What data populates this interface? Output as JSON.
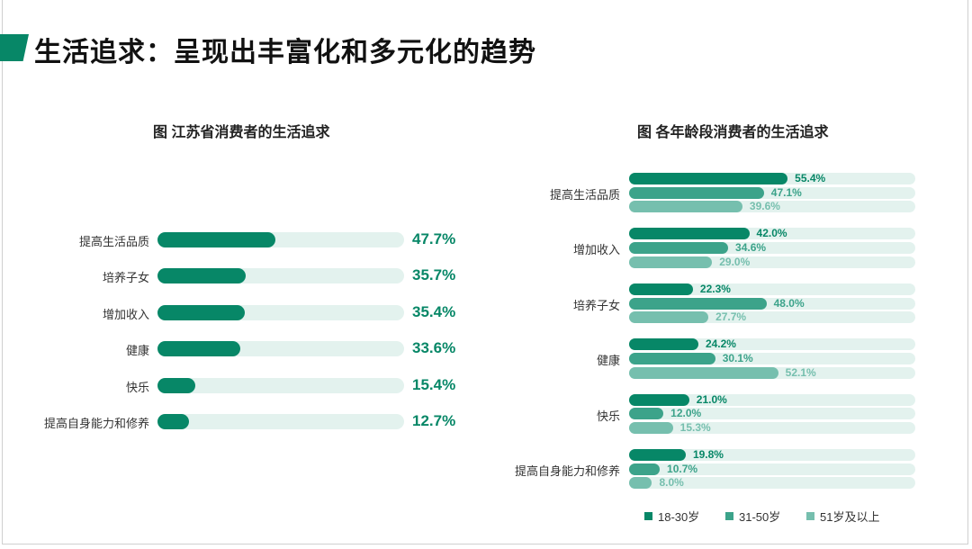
{
  "title": "生活追求：呈现出丰富化和多元化的趋势",
  "colors": {
    "dark": "#078767",
    "mid": "#3ca38a",
    "light": "#76bfae",
    "track": "#e3f2ee"
  },
  "chart_data": [
    {
      "type": "bar",
      "title": "图 江苏省消费者的生活追求",
      "categories": [
        "提高生活品质",
        "培养子女",
        "增加收入",
        "健康",
        "快乐",
        "提高自身能力和修养"
      ],
      "values": [
        47.7,
        35.7,
        35.4,
        33.6,
        15.4,
        12.7
      ],
      "labels": [
        "47.7%",
        "35.7%",
        "35.4%",
        "33.6%",
        "15.4%",
        "12.7%"
      ],
      "xlim": [
        0,
        100
      ]
    },
    {
      "type": "bar",
      "title": "图 各年龄段消费者的生活追求",
      "categories": [
        "提高生活品质",
        "增加收入",
        "培养子女",
        "健康",
        "快乐",
        "提高自身能力和修养"
      ],
      "xlim": [
        0,
        100
      ],
      "legend_position": "bottom",
      "series": [
        {
          "name": "18-30岁",
          "values": [
            55.4,
            42.0,
            22.3,
            24.2,
            21.0,
            19.8
          ],
          "labels": [
            "55.4%",
            "42.0%",
            "22.3%",
            "24.2%",
            "21.0%",
            "19.8%"
          ]
        },
        {
          "name": "31-50岁",
          "values": [
            47.1,
            34.6,
            48.0,
            30.1,
            12.0,
            10.7
          ],
          "labels": [
            "47.1%",
            "34.6%",
            "48.0%",
            "30.1%",
            "12.0%",
            "10.7%"
          ]
        },
        {
          "name": "51岁及以上",
          "values": [
            39.6,
            29.0,
            27.7,
            52.1,
            15.3,
            8.0
          ],
          "labels": [
            "39.6%",
            "29.0%",
            "27.7%",
            "52.1%",
            "15.3%",
            "8.0%"
          ]
        }
      ]
    }
  ]
}
